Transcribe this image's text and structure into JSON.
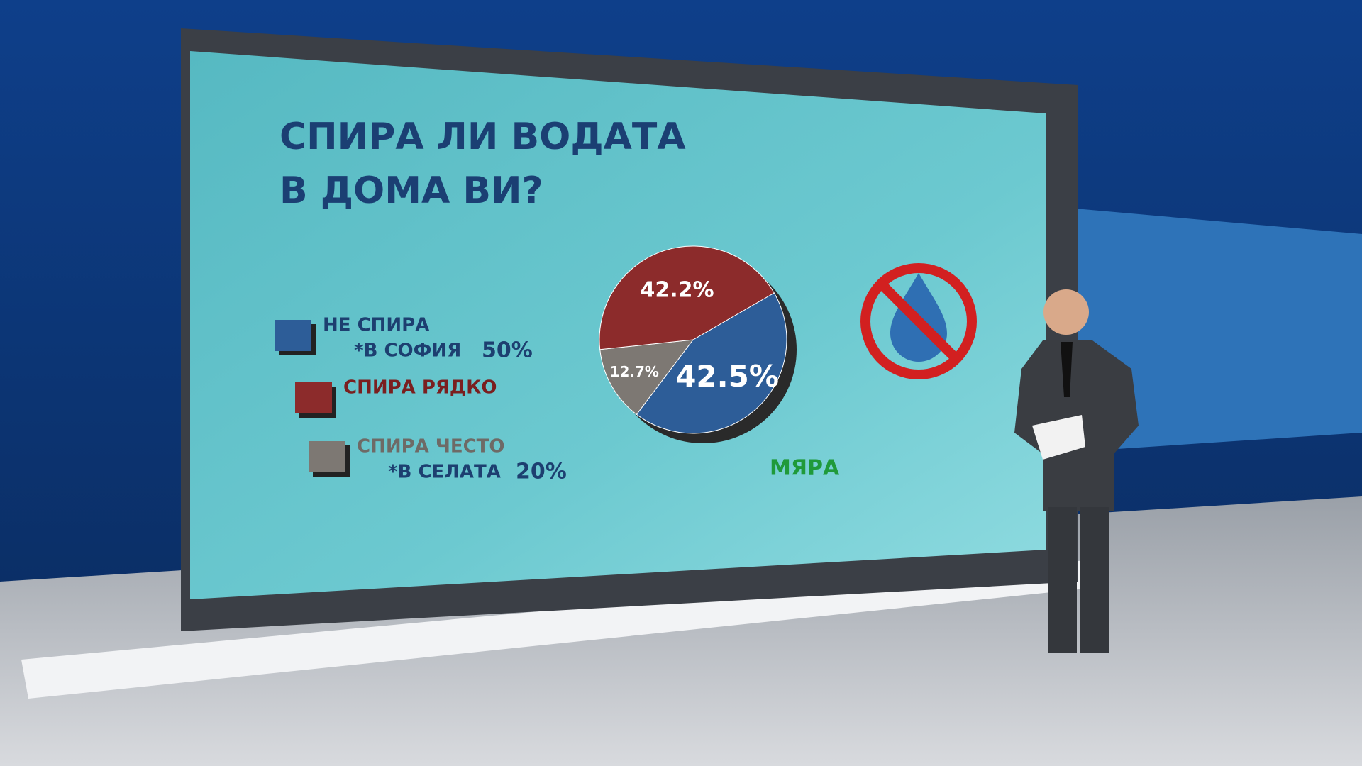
{
  "chart_data": {
    "type": "pie",
    "title": [
      "СПИРА ЛИ  ВОДАТА",
      "В ДОМА ВИ?"
    ],
    "categories": [
      "НЕ СПИРА",
      "СПИРА ЧЕСТО",
      "СПИРА РЯДКО"
    ],
    "values": [
      42.5,
      12.7,
      42.2
    ],
    "value_labels": [
      "42.5%",
      "12.7%",
      "42.2%"
    ],
    "colors": [
      "#2d5d98",
      "#7d7873",
      "#8c2b2b"
    ],
    "annotations": [
      {
        "category": 0,
        "text": "*В СОФИЯ",
        "value": 50,
        "label": "50%"
      },
      {
        "category": 1,
        "text": "*В СЕЛАТА",
        "value": 20,
        "label": "20%"
      }
    ],
    "source": "МЯРА"
  }
}
